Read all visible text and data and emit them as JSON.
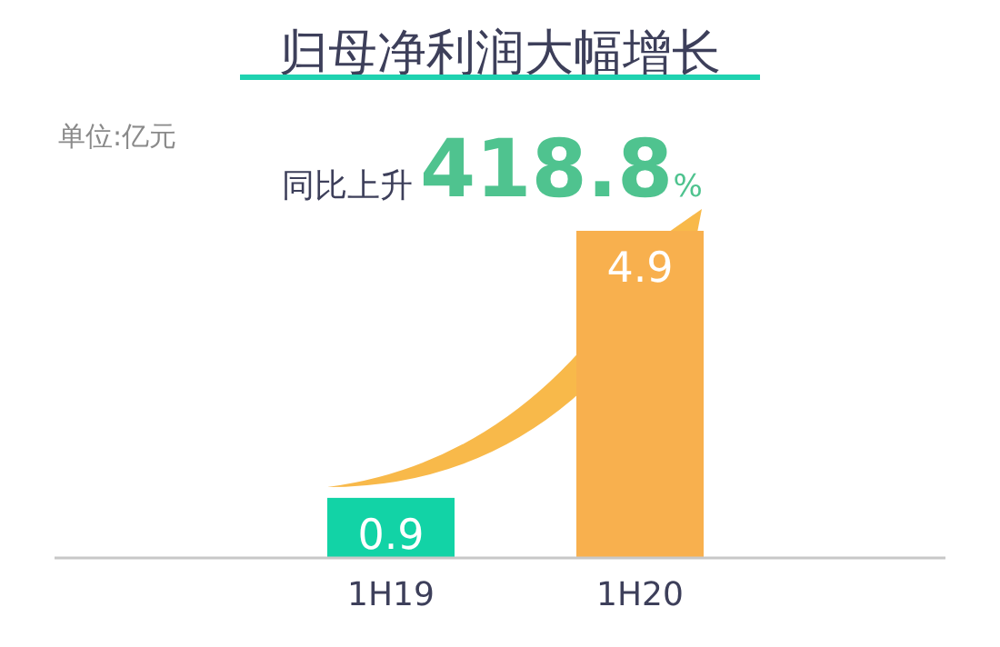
{
  "chart_data": {
    "type": "bar",
    "title": "归母净利润大幅增长",
    "categories": [
      "1H19",
      "1H20"
    ],
    "values": [
      0.9,
      4.9
    ],
    "colors": [
      "#12d3a6",
      "#f8b04e"
    ],
    "data_labels": true,
    "annotations": [
      "单位:亿元",
      "同比上升418.8%"
    ]
  }
}
